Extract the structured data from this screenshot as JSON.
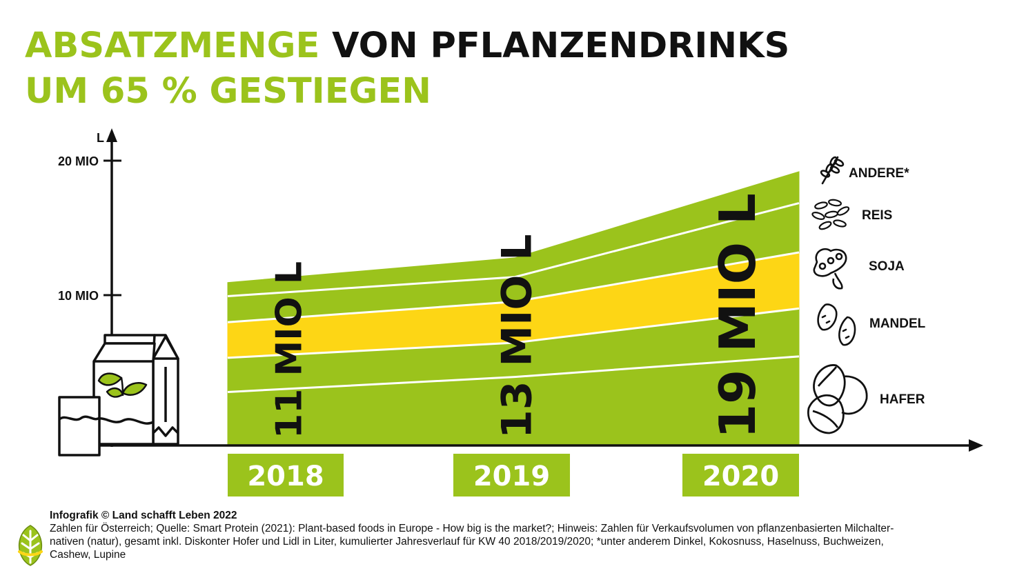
{
  "title": {
    "line1_green": "ABSATZMENGE",
    "line1_black": "VON PFLANZENDRINKS",
    "line2": "UM 65 % GESTIEGEN"
  },
  "colors": {
    "green": "#9bc31c",
    "yellow": "#fdd615",
    "black": "#111111",
    "white": "#ffffff"
  },
  "chart_data": {
    "type": "area",
    "stacked": true,
    "ylabel": "L",
    "y_ticks": [
      {
        "value": 10,
        "label": "10 MIO"
      },
      {
        "value": 20,
        "label": "20 MIO"
      }
    ],
    "ylim": [
      0,
      20
    ],
    "categories": [
      "2018",
      "2019",
      "2020"
    ],
    "totals": [
      11,
      13,
      19
    ],
    "total_labels": [
      "11 MIO L",
      "13 MIO L",
      "19 MIO L"
    ],
    "series": [
      {
        "name": "HAFER",
        "icon": "oat-icon",
        "color": "#9bc31c",
        "values": [
          3.1,
          4.2,
          5.7
        ]
      },
      {
        "name": "MANDEL",
        "icon": "almond-icon",
        "color": "#9bc31c",
        "values": [
          2.5,
          2.5,
          3.5
        ]
      },
      {
        "name": "SOJA",
        "icon": "soybean-icon",
        "color": "#fdd615",
        "values": [
          2.6,
          3.0,
          4.1
        ]
      },
      {
        "name": "REIS",
        "icon": "rice-icon",
        "color": "#9bc31c",
        "values": [
          1.9,
          1.8,
          3.6
        ]
      },
      {
        "name": "ANDERE*",
        "icon": "wheat-icon",
        "color": "#9bc31c",
        "values": [
          1.0,
          1.4,
          2.3
        ]
      }
    ],
    "grid": false,
    "legend_position": "right"
  },
  "footer": {
    "credit": "Infografik © Land schafft Leben 2022",
    "line1": "Zahlen für Österreich; Quelle: Smart Protein (2021): Plant-based foods in Europe - How big is the market?; Hinweis: Zahlen für Verkaufsvolumen von pflanzenbasierten Milchalter-",
    "line2": "nativen (natur), gesamt inkl. Diskonter Hofer und Lidl in Liter, kumulierter Jahresverlauf für KW 40 2018/2019/2020; *unter anderem Dinkel, Kokosnuss, Haselnuss, Buchweizen,",
    "line3": "Cashew, Lupine"
  }
}
